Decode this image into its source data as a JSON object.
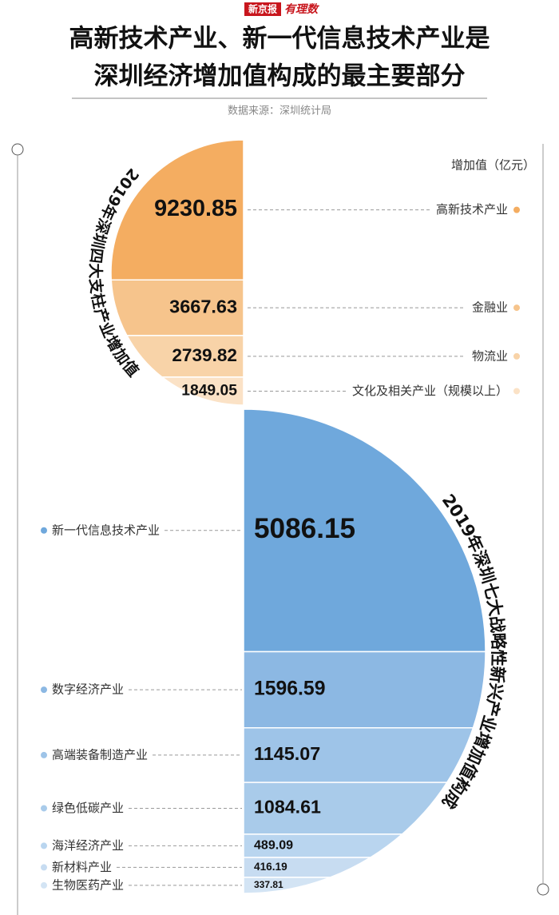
{
  "header": {
    "logo": "新京报",
    "brand": "有理数",
    "title_lines": [
      "高新技术产业、新一代信息技术产业是",
      "深圳经济增加值构成的最主要部分"
    ],
    "source": "数据来源：深圳统计局"
  },
  "chart_data": [
    {
      "type": "semicircle",
      "side": "left",
      "title": "2019年深圳四大支柱产业增加值",
      "unit_label": "增加值（亿元）",
      "categories": [
        "高新技术产业",
        "金融业",
        "物流业",
        "文化及相关产业（规模以上）"
      ],
      "values": [
        9230.85,
        3667.63,
        2739.82,
        1849.05
      ],
      "colors": [
        "#f4ad61",
        "#f6c48c",
        "#f8d3a8",
        "#fbe2c6"
      ]
    },
    {
      "type": "semicircle",
      "side": "right",
      "title": "2019年深圳七大战略性新兴产业增加值构成",
      "categories": [
        "新一代信息技术产业",
        "数字经济产业",
        "高端装备制造产业",
        "绿色低碳产业",
        "海洋经济产业",
        "新材料产业",
        "生物医药产业"
      ],
      "values": [
        5086.15,
        1596.59,
        1145.07,
        1084.61,
        489.09,
        416.19,
        337.81
      ],
      "colors": [
        "#6fa8dc",
        "#8cb8e3",
        "#9ec4e8",
        "#a9cbea",
        "#b9d5ef",
        "#c7dcf1",
        "#d3e4f4"
      ]
    }
  ]
}
